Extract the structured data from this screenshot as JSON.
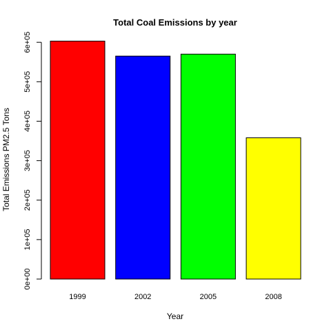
{
  "chart_data": {
    "type": "bar",
    "title": "Total Coal Emissions by year",
    "xlabel": "Year",
    "ylabel": "Total Emissions PM2.5 Tons",
    "categories": [
      "1999",
      "2002",
      "2005",
      "2008"
    ],
    "values": [
      603000,
      565000,
      570000,
      358000
    ],
    "colors": [
      "#ff0000",
      "#0000ff",
      "#00ff00",
      "#ffff00"
    ],
    "yticks": [
      0,
      100000,
      200000,
      300000,
      400000,
      500000,
      600000
    ],
    "ytick_labels": [
      "0e+00",
      "1e+05",
      "2e+05",
      "3e+05",
      "4e+05",
      "5e+05",
      "6e+05"
    ],
    "ylim": [
      0,
      630000
    ],
    "grid": false,
    "legend": "none"
  }
}
